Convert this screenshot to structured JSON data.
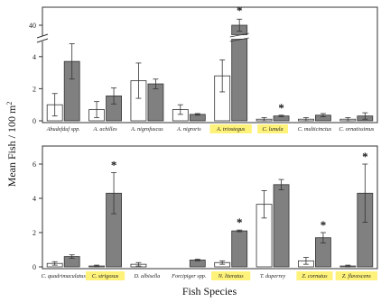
{
  "chart_data": [
    {
      "type": "bar",
      "panel": "top",
      "categories": [
        "Abudefduf spp.",
        "A. achilles",
        "A. nigrofuscus",
        "A. nigroris",
        "A. triostegus",
        "C. lunula",
        "C. multicinctus",
        "C. ornatissimus"
      ],
      "highlighted": [
        "A. triostegus",
        "C. lunula"
      ],
      "series": [
        {
          "color": "#ffffff",
          "values": [
            1.0,
            0.7,
            2.5,
            0.7,
            2.8,
            0.1,
            0.1,
            0.1
          ],
          "errors": [
            0.7,
            0.5,
            1.1,
            0.3,
            1.0,
            0.1,
            0.1,
            0.1
          ]
        },
        {
          "color": "#808080",
          "values": [
            3.7,
            1.55,
            2.3,
            0.4,
            40,
            0.3,
            0.35,
            0.3
          ],
          "errors": [
            1.1,
            0.5,
            0.3,
            0.05,
            3.0,
            0.05,
            0.1,
            0.2
          ]
        }
      ],
      "significant": [
        "A. triostegus",
        "C. lunula"
      ],
      "axis_break": true,
      "ylim": [
        0,
        5
      ],
      "upper_segment_tick": 40,
      "yticks": [
        0,
        2,
        4
      ]
    },
    {
      "type": "bar",
      "panel": "bottom",
      "categories": [
        "C. quadrimaculatus",
        "C. strigosus",
        "D. albisella",
        "Forcipiger spp.",
        "N. literatus",
        "T. duperrey",
        "Z. cornutus",
        "Z. flavescens"
      ],
      "highlighted": [
        "C. strigosus",
        "N. literatus",
        "Z. cornutus",
        "Z. flavescens"
      ],
      "series": [
        {
          "color": "#ffffff",
          "values": [
            0.2,
            0.05,
            0.15,
            0,
            0.25,
            3.65,
            0.35,
            0.05
          ],
          "errors": [
            0.1,
            0.05,
            0.1,
            0,
            0.1,
            0.8,
            0.2,
            0.05
          ]
        },
        {
          "color": "#808080",
          "values": [
            0.6,
            4.3,
            0,
            0.4,
            2.1,
            4.8,
            1.7,
            4.3
          ],
          "errors": [
            0.1,
            1.2,
            0,
            0.05,
            0.05,
            0.3,
            0.3,
            1.7
          ]
        }
      ],
      "significant": [
        "C. strigosus",
        "N. literatus",
        "Z. cornutus",
        "Z. flavescens"
      ],
      "ylim": [
        0,
        6
      ],
      "yticks": [
        0,
        2,
        4,
        6
      ]
    }
  ],
  "ylabel": "Mean Fish / 100 m",
  "ylabel_sup": "2",
  "xlabel": "Fish Species",
  "star_symbol": "*",
  "highlight_color": "#fff27a"
}
